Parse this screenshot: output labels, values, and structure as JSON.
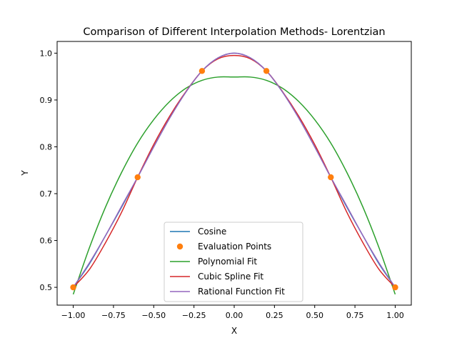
{
  "chart_data": {
    "type": "line",
    "title": "Comparison of Different Interpolation Methods- Lorentzian",
    "xlabel": "X",
    "ylabel": "Y",
    "xlim": [
      -1.1,
      1.1
    ],
    "ylim": [
      0.462,
      1.025
    ],
    "x_ticks": [
      -1.0,
      -0.75,
      -0.5,
      -0.25,
      0.0,
      0.25,
      0.5,
      0.75,
      1.0
    ],
    "x_tick_labels": [
      "−1.00",
      "−0.75",
      "−0.50",
      "−0.25",
      "0.00",
      "0.25",
      "0.50",
      "0.75",
      "1.00"
    ],
    "y_ticks": [
      0.5,
      0.6,
      0.7,
      0.8,
      0.9,
      1.0
    ],
    "y_tick_labels": [
      "0.5",
      "0.6",
      "0.7",
      "0.8",
      "0.9",
      "1.0"
    ],
    "grid": false,
    "legend_placement": "bottom-center",
    "evaluation_points": {
      "name": "Evaluation Points",
      "color": "#ff7f0e",
      "x": [
        -1.0,
        -0.6,
        -0.2,
        0.2,
        0.6,
        1.0
      ],
      "y": [
        0.5,
        0.735,
        0.962,
        0.962,
        0.735,
        0.5
      ]
    },
    "series": [
      {
        "name": "Cosine",
        "color": "#1f77b4",
        "x": [
          -1.0,
          -0.9,
          -0.8,
          -0.7,
          -0.6,
          -0.5,
          -0.4,
          -0.3,
          -0.2,
          -0.1,
          0.0,
          0.1,
          0.2,
          0.3,
          0.4,
          0.5,
          0.6,
          0.7,
          0.8,
          0.9,
          1.0
        ],
        "y": [
          0.5,
          0.55,
          0.61,
          0.671,
          0.735,
          0.8,
          0.862,
          0.917,
          0.962,
          0.99,
          1.0,
          0.99,
          0.962,
          0.917,
          0.862,
          0.8,
          0.735,
          0.671,
          0.61,
          0.55,
          0.5
        ]
      },
      {
        "name": "Polynomial Fit",
        "color": "#2ca02c",
        "x": [
          -1.0,
          -0.9,
          -0.8,
          -0.7,
          -0.6,
          -0.5,
          -0.4,
          -0.3,
          -0.2,
          -0.1,
          0.0,
          0.1,
          0.2,
          0.3,
          0.4,
          0.5,
          0.6,
          0.7,
          0.8,
          0.9,
          1.0
        ],
        "y": [
          0.485,
          0.584,
          0.671,
          0.745,
          0.808,
          0.858,
          0.897,
          0.925,
          0.942,
          0.949,
          0.949,
          0.949,
          0.942,
          0.925,
          0.897,
          0.858,
          0.808,
          0.745,
          0.671,
          0.584,
          0.485
        ]
      },
      {
        "name": "Cubic Spline Fit",
        "color": "#d62728",
        "x": [
          -1.0,
          -0.9,
          -0.8,
          -0.7,
          -0.6,
          -0.5,
          -0.4,
          -0.3,
          -0.2,
          -0.1,
          0.0,
          0.1,
          0.2,
          0.3,
          0.4,
          0.5,
          0.6,
          0.7,
          0.8,
          0.9,
          1.0
        ],
        "y": [
          0.5,
          0.538,
          0.595,
          0.66,
          0.735,
          0.805,
          0.866,
          0.918,
          0.962,
          0.988,
          0.995,
          0.988,
          0.962,
          0.918,
          0.866,
          0.805,
          0.735,
          0.66,
          0.595,
          0.538,
          0.5
        ]
      },
      {
        "name": "Rational Function Fit",
        "color": "#9467bd",
        "x": [
          -1.0,
          -0.9,
          -0.8,
          -0.7,
          -0.6,
          -0.5,
          -0.4,
          -0.3,
          -0.2,
          -0.1,
          0.0,
          0.1,
          0.2,
          0.3,
          0.4,
          0.5,
          0.6,
          0.7,
          0.8,
          0.9,
          1.0
        ],
        "y": [
          0.5,
          0.552,
          0.61,
          0.673,
          0.735,
          0.8,
          0.862,
          0.917,
          0.962,
          0.99,
          1.0,
          0.99,
          0.962,
          0.917,
          0.862,
          0.8,
          0.735,
          0.673,
          0.61,
          0.552,
          0.5
        ]
      }
    ],
    "legend": [
      {
        "label": "Cosine",
        "kind": "line",
        "color": "#1f77b4"
      },
      {
        "label": "Evaluation Points",
        "kind": "marker",
        "color": "#ff7f0e"
      },
      {
        "label": "Polynomial Fit",
        "kind": "line",
        "color": "#2ca02c"
      },
      {
        "label": "Cubic Spline Fit",
        "kind": "line",
        "color": "#d62728"
      },
      {
        "label": "Rational Function Fit",
        "kind": "line",
        "color": "#9467bd"
      }
    ]
  }
}
